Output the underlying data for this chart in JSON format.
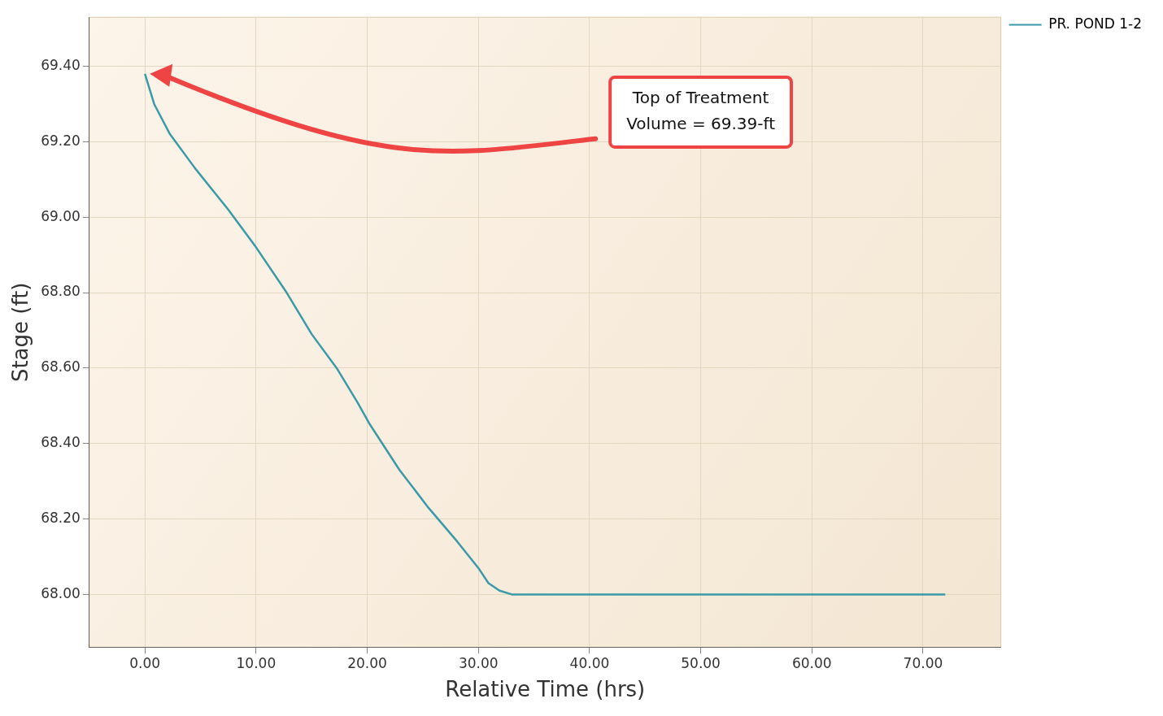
{
  "chart_data": {
    "type": "line",
    "xlabel": "Relative Time (hrs)",
    "ylabel": "Stage (ft)",
    "x": [
      0,
      0.83,
      2.25,
      4.5,
      7.5,
      10,
      12.75,
      15,
      17.25,
      19.1,
      20.25,
      22.9,
      25.5,
      28.1,
      30,
      30.9,
      31.9,
      33,
      72
    ],
    "series": [
      {
        "name": "PR. POND 1-2",
        "color": "#3a9aa8",
        "values": [
          69.38,
          69.3,
          69.22,
          69.13,
          69.02,
          68.92,
          68.8,
          68.69,
          68.6,
          68.51,
          68.45,
          68.33,
          68.23,
          68.14,
          68.07,
          68.03,
          68.01,
          68.0,
          68.0
        ]
      }
    ],
    "xlim": [
      -5,
      77
    ],
    "ylim": [
      67.86,
      69.53
    ],
    "xticks": [
      {
        "value": 0,
        "label": "0.00"
      },
      {
        "value": 10,
        "label": "10.00"
      },
      {
        "value": 20,
        "label": "20.00"
      },
      {
        "value": 30,
        "label": "30.00"
      },
      {
        "value": 40,
        "label": "40.00"
      },
      {
        "value": 50,
        "label": "50.00"
      },
      {
        "value": 60,
        "label": "60.00"
      },
      {
        "value": 70,
        "label": "70.00"
      }
    ],
    "yticks": [
      {
        "value": 68,
        "label": "68.00"
      },
      {
        "value": 68.2,
        "label": "68.20"
      },
      {
        "value": 68.4,
        "label": "68.40"
      },
      {
        "value": 68.6,
        "label": "68.60"
      },
      {
        "value": 68.8,
        "label": "68.80"
      },
      {
        "value": 69,
        "label": "69.00"
      },
      {
        "value": 69.2,
        "label": "69.20"
      },
      {
        "value": 69.4,
        "label": "69.40"
      }
    ],
    "annotations": [
      "Top of Treatment\nVolume = 69.39-ft"
    ],
    "grid": true,
    "legend": "top right",
    "marker": "none",
    "line_style": "solid"
  }
}
